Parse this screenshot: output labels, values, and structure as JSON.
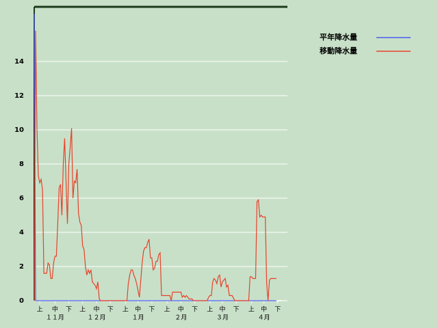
{
  "chart_data": {
    "type": "line",
    "x": [
      0,
      1,
      2,
      3,
      4,
      5,
      6,
      7,
      9,
      10,
      11,
      12,
      13,
      14,
      15,
      16,
      17,
      18,
      19,
      20,
      21,
      22,
      23,
      24,
      25,
      26,
      27,
      28,
      29,
      30,
      31,
      32,
      33,
      34,
      35,
      36,
      37,
      38,
      39,
      40,
      41,
      42,
      43,
      44,
      45,
      46,
      47,
      48,
      67,
      68,
      69,
      70,
      71,
      72,
      73,
      74,
      76,
      77,
      78,
      79,
      80,
      81,
      82,
      83,
      84,
      85,
      86,
      87,
      88,
      89,
      90,
      91,
      92,
      98,
      99,
      100,
      106,
      107,
      108,
      109,
      110,
      111,
      112,
      114,
      115,
      125,
      126,
      127,
      128,
      129,
      130,
      131,
      132,
      133,
      134,
      135,
      136,
      137,
      138,
      139,
      140,
      141,
      143,
      145,
      155,
      156,
      157,
      158,
      160,
      161,
      162,
      163,
      164,
      165,
      167,
      168,
      169,
      170,
      171,
      175
    ],
    "series": [
      {
        "name": "平年降水量",
        "color": "#4a5cf0",
        "values": [
          16.8,
          0,
          0,
          0,
          0,
          0,
          0,
          0,
          0,
          0,
          0,
          0,
          0,
          0,
          0,
          0,
          0,
          0,
          0,
          0,
          0,
          0,
          0,
          0,
          0,
          0,
          0,
          0,
          0,
          0,
          0,
          0,
          0,
          0,
          0,
          0,
          0,
          0,
          0,
          0,
          0,
          0,
          0,
          0,
          0,
          0,
          0,
          0,
          0,
          0,
          0,
          0,
          0,
          0,
          0,
          0,
          0,
          0,
          0,
          0,
          0,
          0,
          0,
          0,
          0,
          0,
          0,
          0,
          0,
          0,
          0,
          0,
          0,
          0,
          0,
          0,
          0,
          0,
          0,
          0,
          0,
          0,
          0,
          0,
          0,
          0,
          0,
          0,
          0,
          0,
          0,
          0,
          0,
          0,
          0,
          0,
          0,
          0,
          0,
          0,
          0,
          0,
          0,
          0,
          0,
          0,
          0,
          0,
          0,
          0,
          0,
          0,
          0,
          0,
          0,
          0,
          0,
          0,
          0,
          0
        ]
      },
      {
        "name": "移動降水量",
        "color": "#e8402a",
        "values": [
          0,
          15.8,
          10,
          7.3,
          6.9,
          7.1,
          6.5,
          1.6,
          1.6,
          2.2,
          2.1,
          1.3,
          1.3,
          2.2,
          2.6,
          2.6,
          4.5,
          6.6,
          6.8,
          5.0,
          8.0,
          9.5,
          7.0,
          4.5,
          8.0,
          9.0,
          10.1,
          6.0,
          7.0,
          6.9,
          7.7,
          5.1,
          4.6,
          4.4,
          3.2,
          3.0,
          2.0,
          1.5,
          1.8,
          1.6,
          1.8,
          1.1,
          1.0,
          0.9,
          0.7,
          1.1,
          0.1,
          0,
          0,
          1.0,
          1.5,
          1.8,
          1.8,
          1.5,
          1.3,
          1.0,
          0.2,
          1.2,
          2.2,
          2.9,
          3.1,
          3.1,
          3.4,
          3.6,
          2.5,
          2.5,
          1.8,
          1.9,
          2.3,
          2.3,
          2.7,
          2.8,
          0.3,
          0.3,
          0,
          0.5,
          0.5,
          0.2,
          0.3,
          0.2,
          0.3,
          0.2,
          0.1,
          0.1,
          0,
          0,
          0.2,
          0.3,
          0.3,
          1.1,
          1.3,
          1.2,
          1.0,
          1.4,
          1.5,
          0.8,
          1.1,
          1.2,
          1.3,
          0.8,
          0.9,
          0.3,
          0.3,
          0,
          0,
          1.4,
          1.4,
          1.3,
          1.3,
          5.8,
          5.9,
          4.9,
          5.0,
          4.9,
          4.9,
          1.0,
          0,
          1.2,
          1.3,
          1.3
        ]
      }
    ],
    "xlim": [
      0,
      183
    ],
    "xticks": [
      {
        "value": 4,
        "label": "上"
      },
      {
        "value": 15,
        "label": "中"
      },
      {
        "value": 25,
        "label": "下"
      },
      {
        "value": 35,
        "label": "上"
      },
      {
        "value": 45,
        "label": "中"
      },
      {
        "value": 55,
        "label": "下"
      },
      {
        "value": 66,
        "label": "上"
      },
      {
        "value": 75,
        "label": "中"
      },
      {
        "value": 85,
        "label": "下"
      },
      {
        "value": 96,
        "label": "上"
      },
      {
        "value": 106,
        "label": "中"
      },
      {
        "value": 116,
        "label": "下"
      },
      {
        "value": 127,
        "label": "上"
      },
      {
        "value": 136,
        "label": "中"
      },
      {
        "value": 146,
        "label": "下"
      },
      {
        "value": 157,
        "label": "上"
      },
      {
        "value": 166,
        "label": "中"
      },
      {
        "value": 176,
        "label": "下"
      }
    ],
    "x_month_ticks": [
      {
        "value": 15,
        "label": "１１月"
      },
      {
        "value": 45,
        "label": "１２月"
      },
      {
        "value": 75,
        "label": "１月"
      },
      {
        "value": 106,
        "label": "２月"
      },
      {
        "value": 136,
        "label": "３月"
      },
      {
        "value": 166,
        "label": "４月"
      }
    ],
    "ylim": [
      0,
      17.2
    ],
    "yticks": [
      0,
      2,
      4,
      6,
      8,
      10,
      12,
      14
    ],
    "grid": true
  }
}
